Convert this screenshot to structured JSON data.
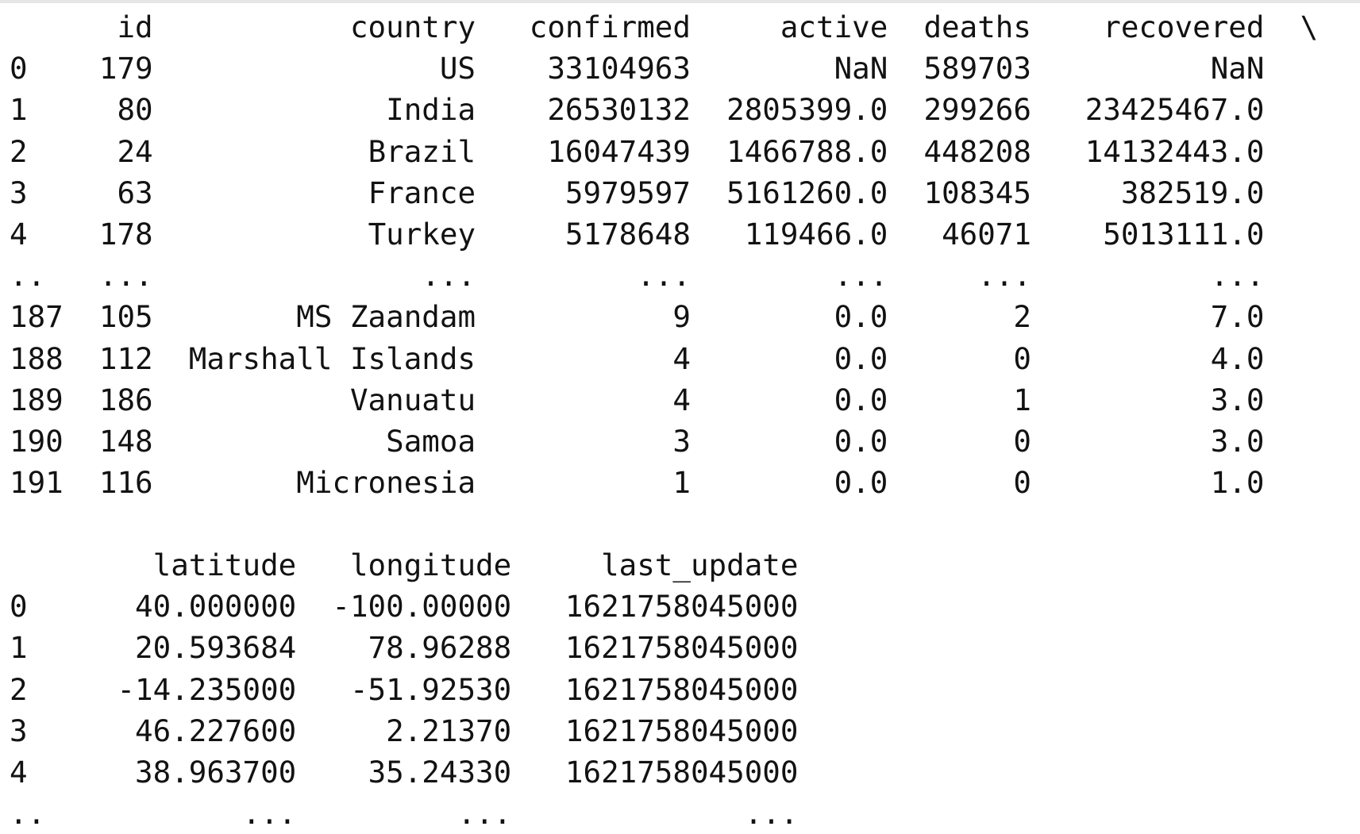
{
  "output": {
    "block1": {
      "columns": [
        "id",
        "country",
        "confirmed",
        "active",
        "deaths",
        "recovered"
      ],
      "continuation": "\\",
      "rows": [
        {
          "index": "0",
          "cells": [
            "179",
            "US",
            "33104963",
            "NaN",
            "589703",
            "NaN"
          ]
        },
        {
          "index": "1",
          "cells": [
            "80",
            "India",
            "26530132",
            "2805399.0",
            "299266",
            "23425467.0"
          ]
        },
        {
          "index": "2",
          "cells": [
            "24",
            "Brazil",
            "16047439",
            "1466788.0",
            "448208",
            "14132443.0"
          ]
        },
        {
          "index": "3",
          "cells": [
            "63",
            "France",
            "5979597",
            "5161260.0",
            "108345",
            "382519.0"
          ]
        },
        {
          "index": "4",
          "cells": [
            "178",
            "Turkey",
            "5178648",
            "119466.0",
            "46071",
            "5013111.0"
          ]
        },
        {
          "index": "..",
          "cells": [
            "...",
            "...",
            "...",
            "...",
            "...",
            "..."
          ]
        },
        {
          "index": "187",
          "cells": [
            "105",
            "MS Zaandam",
            "9",
            "0.0",
            "2",
            "7.0"
          ]
        },
        {
          "index": "188",
          "cells": [
            "112",
            "Marshall Islands",
            "4",
            "0.0",
            "0",
            "4.0"
          ]
        },
        {
          "index": "189",
          "cells": [
            "186",
            "Vanuatu",
            "4",
            "0.0",
            "1",
            "3.0"
          ]
        },
        {
          "index": "190",
          "cells": [
            "148",
            "Samoa",
            "3",
            "0.0",
            "0",
            "3.0"
          ]
        },
        {
          "index": "191",
          "cells": [
            "116",
            "Micronesia",
            "1",
            "0.0",
            "0",
            "1.0"
          ]
        }
      ]
    },
    "block2": {
      "columns": [
        "latitude",
        "longitude",
        "last_update"
      ],
      "rows": [
        {
          "index": "0",
          "cells": [
            "40.000000",
            "-100.00000",
            "1621758045000"
          ]
        },
        {
          "index": "1",
          "cells": [
            "20.593684",
            "78.96288",
            "1621758045000"
          ]
        },
        {
          "index": "2",
          "cells": [
            "-14.235000",
            "-51.92530",
            "1621758045000"
          ]
        },
        {
          "index": "3",
          "cells": [
            "46.227600",
            "2.21370",
            "1621758045000"
          ]
        },
        {
          "index": "4",
          "cells": [
            "38.963700",
            "35.24330",
            "1621758045000"
          ]
        },
        {
          "index": "..",
          "cells": [
            "...",
            "...",
            "..."
          ]
        }
      ]
    }
  }
}
